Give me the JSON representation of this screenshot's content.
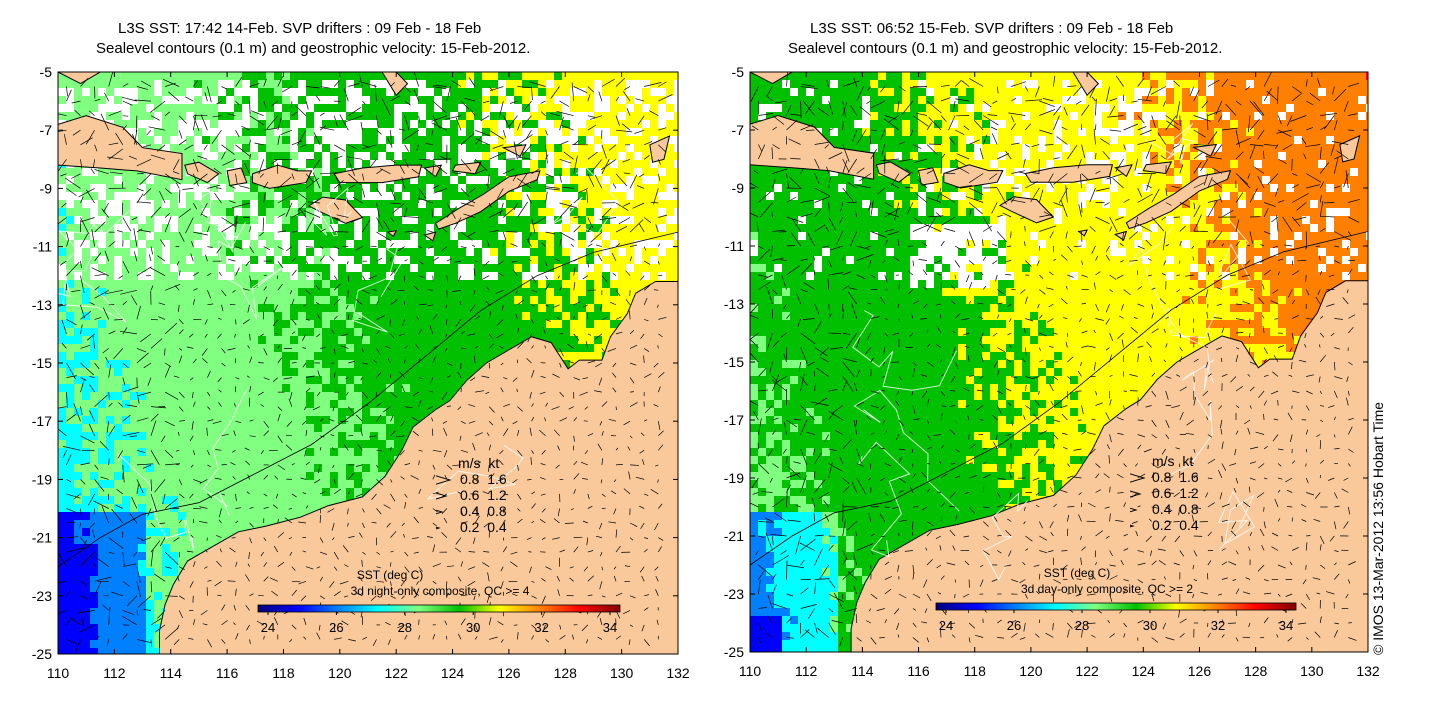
{
  "panels": [
    {
      "title_line1": "L3S SST: 17:42 14-Feb. SVP drifters : 09 Feb - 18 Feb",
      "title_line2": "Sealevel contours (0.1 m) and geostrophic velocity: 15-Feb-2012.",
      "colorbar_title": "SST (deg C)",
      "colorbar_subtitle": "3d night-only composite, QC >= 4",
      "colorbar_ticks": [
        "24",
        "26",
        "28",
        "30",
        "32",
        "34"
      ],
      "palette_mode": "night"
    },
    {
      "title_line1": "L3S SST: 06:52 15-Feb. SVP drifters : 09 Feb - 18 Feb",
      "title_line2": "Sealevel contours (0.1 m) and geostrophic velocity: 15-Feb-2012.",
      "colorbar_title": "SST (deg C)",
      "colorbar_subtitle": "3d day-only composite, QC >= 2",
      "colorbar_ticks": [
        "24",
        "26",
        "28",
        "30",
        "32",
        "34"
      ],
      "palette_mode": "day"
    }
  ],
  "axes": {
    "y_ticks": [
      "-5",
      "-7",
      "-9",
      "-11",
      "-13",
      "-15",
      "-17",
      "-19",
      "-21",
      "-23",
      "-25"
    ],
    "x_ticks": [
      "110",
      "112",
      "114",
      "116",
      "118",
      "120",
      "122",
      "124",
      "126",
      "128",
      "130",
      "132"
    ],
    "lat_range": [
      -25,
      -5
    ],
    "lon_range": [
      110,
      132
    ]
  },
  "velocity_legend": {
    "header": "m/s  kt",
    "rows": [
      "0.8  1.6",
      "0.6  1.2",
      "0.4  0.8",
      "0.2  0.4"
    ]
  },
  "copyright": "© IMOS 13-Mar-2012 13:56 Hobart Time",
  "colors": {
    "land": "#f9c99b",
    "colorbar": [
      "#00007f",
      "#0000ff",
      "#0080ff",
      "#00ffff",
      "#80ff80",
      "#00c000",
      "#ffff00",
      "#ff8000",
      "#ff0000",
      "#7f0000"
    ]
  }
}
